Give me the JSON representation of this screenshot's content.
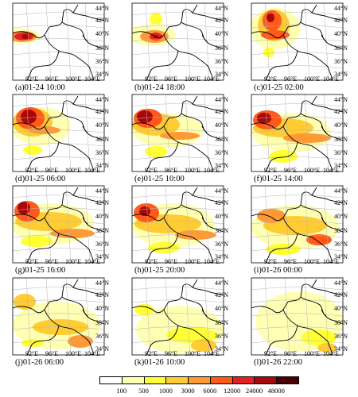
{
  "colors": {
    "c100": "#ffffb3",
    "c500": "#ffff33",
    "c1000": "#ffcc33",
    "c3000": "#ff9933",
    "c6000": "#ff5a1a",
    "c12000": "#e62020",
    "c24000": "#a80808",
    "c48000": "#4a0000"
  },
  "lat_labels": [
    "44°N",
    "42°N",
    "40°N",
    "38°N",
    "36°N",
    "34°N"
  ],
  "lon_labels": [
    "92°E",
    "96°E",
    "100°E",
    "104°E"
  ],
  "panels": [
    {
      "title": "(a)01-24 10:00",
      "blobs": [
        {
          "cx": 8,
          "cy": 41.5,
          "rx": 26,
          "ry": 10,
          "level": "c100"
        },
        {
          "cx": 12,
          "cy": 42,
          "rx": 18,
          "ry": 7,
          "level": "c3000"
        },
        {
          "cx": 14,
          "cy": 42,
          "rx": 12,
          "ry": 5,
          "level": "c12000"
        },
        {
          "cx": 16,
          "cy": 42,
          "rx": 5,
          "ry": 3,
          "level": "c24000"
        }
      ]
    },
    {
      "title": "(b)01-24 18:00",
      "blobs": [
        {
          "cx": 30,
          "cy": 20,
          "rx": 8,
          "ry": 8,
          "level": "c500"
        },
        {
          "cx": 25,
          "cy": 40,
          "rx": 30,
          "ry": 14,
          "level": "c100"
        },
        {
          "cx": 28,
          "cy": 42,
          "rx": 18,
          "ry": 8,
          "level": "c3000"
        },
        {
          "cx": 30,
          "cy": 42,
          "rx": 8,
          "ry": 5,
          "level": "c12000"
        },
        {
          "cx": 30,
          "cy": 42,
          "rx": 3,
          "ry": 2,
          "level": "c24000"
        }
      ]
    },
    {
      "title": "(c)01-25 02:00",
      "blobs": [
        {
          "cx": 30,
          "cy": 32,
          "rx": 32,
          "ry": 26,
          "level": "c100"
        },
        {
          "cx": 28,
          "cy": 28,
          "rx": 20,
          "ry": 20,
          "level": "c1000"
        },
        {
          "cx": 26,
          "cy": 22,
          "rx": 12,
          "ry": 13,
          "level": "c6000"
        },
        {
          "cx": 30,
          "cy": 40,
          "rx": 18,
          "ry": 6,
          "level": "c6000"
        },
        {
          "cx": 24,
          "cy": 18,
          "rx": 5,
          "ry": 6,
          "level": "c24000"
        },
        {
          "cx": 22,
          "cy": 62,
          "rx": 7,
          "ry": 6,
          "level": "c500"
        }
      ]
    },
    {
      "title": "(d)01-25 06:00",
      "blobs": [
        {
          "cx": 35,
          "cy": 40,
          "rx": 38,
          "ry": 24,
          "level": "c100"
        },
        {
          "cx": 25,
          "cy": 35,
          "rx": 25,
          "ry": 18,
          "level": "c1000"
        },
        {
          "cx": 22,
          "cy": 30,
          "rx": 18,
          "ry": 14,
          "level": "c6000"
        },
        {
          "cx": 20,
          "cy": 28,
          "rx": 10,
          "ry": 9,
          "level": "c24000"
        },
        {
          "cx": 40,
          "cy": 45,
          "rx": 20,
          "ry": 5,
          "level": "c3000"
        },
        {
          "cx": 25,
          "cy": 70,
          "rx": 12,
          "ry": 6,
          "level": "c500"
        }
      ]
    },
    {
      "title": "(e)01-25 10:00",
      "blobs": [
        {
          "cx": 45,
          "cy": 45,
          "rx": 45,
          "ry": 22,
          "level": "c100"
        },
        {
          "cx": 30,
          "cy": 38,
          "rx": 30,
          "ry": 14,
          "level": "c1000"
        },
        {
          "cx": 20,
          "cy": 30,
          "rx": 18,
          "ry": 12,
          "level": "c6000"
        },
        {
          "cx": 16,
          "cy": 28,
          "rx": 10,
          "ry": 8,
          "level": "c24000"
        },
        {
          "cx": 60,
          "cy": 52,
          "rx": 25,
          "ry": 5,
          "level": "c3000"
        },
        {
          "cx": 30,
          "cy": 72,
          "rx": 14,
          "ry": 7,
          "level": "c500"
        }
      ]
    },
    {
      "title": "(f)01-25 14:00",
      "blobs": [
        {
          "cx": 50,
          "cy": 48,
          "rx": 50,
          "ry": 25,
          "level": "c100"
        },
        {
          "cx": 40,
          "cy": 42,
          "rx": 38,
          "ry": 12,
          "level": "c1000"
        },
        {
          "cx": 20,
          "cy": 32,
          "rx": 18,
          "ry": 12,
          "level": "c6000"
        },
        {
          "cx": 16,
          "cy": 30,
          "rx": 9,
          "ry": 7,
          "level": "c24000"
        },
        {
          "cx": 70,
          "cy": 55,
          "rx": 30,
          "ry": 6,
          "level": "c3000"
        },
        {
          "cx": 40,
          "cy": 78,
          "rx": 18,
          "ry": 8,
          "level": "c500"
        }
      ]
    },
    {
      "title": "(g)01-25 16:00",
      "blobs": [
        {
          "cx": 50,
          "cy": 48,
          "rx": 52,
          "ry": 26,
          "level": "c100"
        },
        {
          "cx": 45,
          "cy": 45,
          "rx": 42,
          "ry": 12,
          "level": "c1000"
        },
        {
          "cx": 18,
          "cy": 32,
          "rx": 16,
          "ry": 13,
          "level": "c6000"
        },
        {
          "cx": 14,
          "cy": 28,
          "rx": 8,
          "ry": 8,
          "level": "c24000"
        },
        {
          "cx": 75,
          "cy": 60,
          "rx": 28,
          "ry": 6,
          "level": "c3000"
        },
        {
          "cx": 30,
          "cy": 70,
          "rx": 20,
          "ry": 7,
          "level": "c500"
        }
      ]
    },
    {
      "title": "(h)01-25 20:00",
      "blobs": [
        {
          "cx": 52,
          "cy": 50,
          "rx": 52,
          "ry": 28,
          "level": "c100"
        },
        {
          "cx": 45,
          "cy": 48,
          "rx": 42,
          "ry": 12,
          "level": "c1000"
        },
        {
          "cx": 18,
          "cy": 34,
          "rx": 16,
          "ry": 12,
          "level": "c6000"
        },
        {
          "cx": 16,
          "cy": 32,
          "rx": 7,
          "ry": 6,
          "level": "c24000"
        },
        {
          "cx": 80,
          "cy": 62,
          "rx": 26,
          "ry": 6,
          "level": "c3000"
        },
        {
          "cx": 40,
          "cy": 78,
          "rx": 20,
          "ry": 7,
          "level": "c500"
        }
      ]
    },
    {
      "title": "(i)01-26 00:00",
      "blobs": [
        {
          "cx": 55,
          "cy": 52,
          "rx": 55,
          "ry": 28,
          "level": "c100"
        },
        {
          "cx": 55,
          "cy": 50,
          "rx": 40,
          "ry": 12,
          "level": "c1000"
        },
        {
          "cx": 25,
          "cy": 38,
          "rx": 18,
          "ry": 9,
          "level": "c3000"
        },
        {
          "cx": 85,
          "cy": 68,
          "rx": 16,
          "ry": 7,
          "level": "c6000"
        },
        {
          "cx": 40,
          "cy": 80,
          "rx": 22,
          "ry": 7,
          "level": "c500"
        }
      ]
    },
    {
      "title": "(j)01-26 06:00",
      "blobs": [
        {
          "cx": 55,
          "cy": 60,
          "rx": 55,
          "ry": 30,
          "level": "c100"
        },
        {
          "cx": 60,
          "cy": 62,
          "rx": 35,
          "ry": 10,
          "level": "c1000"
        },
        {
          "cx": 15,
          "cy": 30,
          "rx": 14,
          "ry": 10,
          "level": "c1000"
        },
        {
          "cx": 85,
          "cy": 80,
          "rx": 16,
          "ry": 8,
          "level": "c3000"
        },
        {
          "cx": 25,
          "cy": 82,
          "rx": 14,
          "ry": 5,
          "level": "c500"
        }
      ]
    },
    {
      "title": "(k)01-26 10:00",
      "blobs": [
        {
          "cx": 60,
          "cy": 65,
          "rx": 55,
          "ry": 30,
          "level": "c100"
        },
        {
          "cx": 75,
          "cy": 72,
          "rx": 32,
          "ry": 10,
          "level": "c500"
        },
        {
          "cx": 90,
          "cy": 85,
          "rx": 16,
          "ry": 8,
          "level": "c1000"
        },
        {
          "cx": 15,
          "cy": 40,
          "rx": 12,
          "ry": 7,
          "level": "c500"
        }
      ]
    },
    {
      "title": "(l)01-26 22:00",
      "blobs": [
        {
          "cx": 60,
          "cy": 55,
          "rx": 55,
          "ry": 38,
          "level": "c100"
        },
        {
          "cx": 85,
          "cy": 75,
          "rx": 22,
          "ry": 10,
          "level": "c500"
        },
        {
          "cx": 95,
          "cy": 88,
          "rx": 12,
          "ry": 6,
          "level": "c1000"
        }
      ]
    }
  ],
  "legend": {
    "ticks": [
      "100",
      "500",
      "1000",
      "3000",
      "6000",
      "12000",
      "24000",
      "48000"
    ],
    "colors": [
      "#ffffff",
      "#ffffb3",
      "#ffff33",
      "#ffcc33",
      "#ff9933",
      "#ff5a1a",
      "#e62020",
      "#a80808",
      "#4a0000"
    ]
  }
}
